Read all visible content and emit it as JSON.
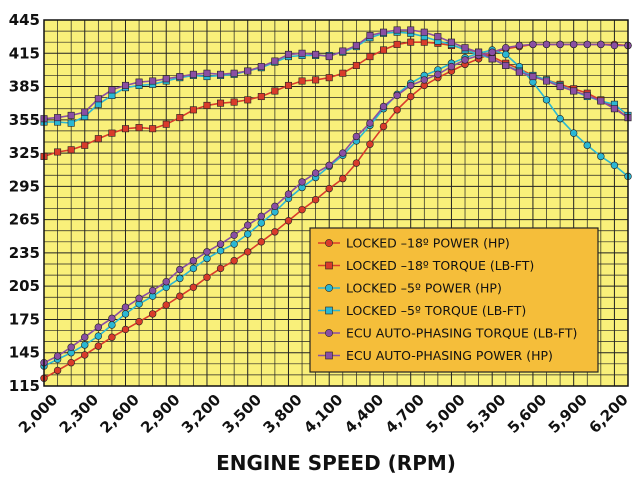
{
  "chart_data": {
    "type": "line",
    "title": "",
    "xlabel": "ENGINE SPEED (RPM)",
    "ylabel": "",
    "xlim": [
      2000,
      6300
    ],
    "ylim": [
      115,
      445
    ],
    "x_ticks": [
      "2,000",
      "2,300",
      "2,600",
      "2,900",
      "3,200",
      "3,500",
      "3,800",
      "4,100",
      "4,400",
      "4,700",
      "5,000",
      "5,300",
      "5,600",
      "5,900",
      "6,200"
    ],
    "y_ticks": [
      "115",
      "145",
      "175",
      "205",
      "235",
      "265",
      "295",
      "325",
      "355",
      "385",
      "415",
      "445"
    ],
    "grid": true,
    "background_color": "#f9f07a",
    "legend_placement": "center-right",
    "legend": [
      {
        "label": "LOCKED –18º POWER (HP)",
        "marker": "circle",
        "color": "#d93b2b"
      },
      {
        "label": "LOCKED –18º TORQUE (LB-FT)",
        "marker": "square",
        "color": "#d93b2b"
      },
      {
        "label": "LOCKED –5º POWER (HP)",
        "marker": "circle",
        "color": "#2ab7d4"
      },
      {
        "label": "LOCKED –5º TORQUE (LB-FT)",
        "marker": "square",
        "color": "#2ab7d4"
      },
      {
        "label": "ECU AUTO-PHASING TORQUE (LB-FT)",
        "marker": "circle",
        "color": "#8a4fa3"
      },
      {
        "label": "ECU AUTO-PHASING POWER (HP)",
        "marker": "square",
        "color": "#8a4fa3"
      }
    ],
    "series": [
      {
        "marker": "circle",
        "color": "#d93b2b",
        "points": [
          [
            2000,
            122
          ],
          [
            2100,
            129
          ],
          [
            2200,
            136
          ],
          [
            2300,
            143
          ],
          [
            2400,
            151
          ],
          [
            2500,
            159
          ],
          [
            2600,
            166
          ],
          [
            2700,
            173
          ],
          [
            2800,
            180
          ],
          [
            2900,
            188
          ],
          [
            3000,
            196
          ],
          [
            3100,
            204
          ],
          [
            3200,
            213
          ],
          [
            3300,
            221
          ],
          [
            3400,
            228
          ],
          [
            3500,
            236
          ],
          [
            3600,
            245
          ],
          [
            3700,
            254
          ],
          [
            3800,
            264
          ],
          [
            3900,
            274
          ],
          [
            4000,
            283
          ],
          [
            4100,
            293
          ],
          [
            4200,
            302
          ],
          [
            4300,
            316
          ],
          [
            4400,
            333
          ],
          [
            4500,
            349
          ],
          [
            4600,
            364
          ],
          [
            4700,
            376
          ],
          [
            4800,
            386
          ],
          [
            4900,
            393
          ],
          [
            5000,
            399
          ],
          [
            5100,
            405
          ],
          [
            5200,
            410
          ],
          [
            5300,
            415
          ],
          [
            5400,
            419
          ],
          [
            5500,
            421
          ],
          [
            5600,
            423
          ],
          [
            5700,
            423
          ],
          [
            5800,
            423
          ],
          [
            5900,
            423
          ],
          [
            6000,
            423
          ],
          [
            6100,
            423
          ],
          [
            6200,
            423
          ],
          [
            6300,
            422
          ]
        ]
      },
      {
        "marker": "square",
        "color": "#d93b2b",
        "points": [
          [
            2000,
            322
          ],
          [
            2100,
            326
          ],
          [
            2200,
            328
          ],
          [
            2300,
            332
          ],
          [
            2400,
            338
          ],
          [
            2500,
            343
          ],
          [
            2600,
            347
          ],
          [
            2700,
            348
          ],
          [
            2800,
            347
          ],
          [
            2900,
            351
          ],
          [
            3000,
            357
          ],
          [
            3100,
            364
          ],
          [
            3200,
            368
          ],
          [
            3300,
            370
          ],
          [
            3400,
            371
          ],
          [
            3500,
            373
          ],
          [
            3600,
            376
          ],
          [
            3700,
            381
          ],
          [
            3800,
            386
          ],
          [
            3900,
            390
          ],
          [
            4000,
            391
          ],
          [
            4100,
            393
          ],
          [
            4200,
            397
          ],
          [
            4300,
            404
          ],
          [
            4400,
            412
          ],
          [
            4500,
            418
          ],
          [
            4600,
            423
          ],
          [
            4700,
            425
          ],
          [
            4800,
            425
          ],
          [
            4900,
            424
          ],
          [
            5000,
            422
          ],
          [
            5100,
            419
          ],
          [
            5200,
            416
          ],
          [
            5300,
            412
          ],
          [
            5400,
            406
          ],
          [
            5500,
            401
          ],
          [
            5600,
            395
          ],
          [
            5700,
            391
          ],
          [
            5800,
            387
          ],
          [
            5900,
            383
          ],
          [
            6000,
            379
          ],
          [
            6100,
            373
          ],
          [
            6200,
            366
          ],
          [
            6300,
            357
          ]
        ]
      },
      {
        "marker": "circle",
        "color": "#2ab7d4",
        "points": [
          [
            2000,
            133
          ],
          [
            2100,
            139
          ],
          [
            2200,
            145
          ],
          [
            2300,
            152
          ],
          [
            2400,
            160
          ],
          [
            2500,
            170
          ],
          [
            2600,
            180
          ],
          [
            2700,
            189
          ],
          [
            2800,
            196
          ],
          [
            2900,
            204
          ],
          [
            3000,
            212
          ],
          [
            3100,
            221
          ],
          [
            3200,
            230
          ],
          [
            3300,
            237
          ],
          [
            3400,
            243
          ],
          [
            3500,
            252
          ],
          [
            3600,
            262
          ],
          [
            3700,
            272
          ],
          [
            3800,
            284
          ],
          [
            3900,
            294
          ],
          [
            4000,
            303
          ],
          [
            4100,
            313
          ],
          [
            4200,
            323
          ],
          [
            4300,
            336
          ],
          [
            4400,
            350
          ],
          [
            4500,
            365
          ],
          [
            4600,
            378
          ],
          [
            4700,
            388
          ],
          [
            4800,
            395
          ],
          [
            4900,
            400
          ],
          [
            5000,
            406
          ],
          [
            5100,
            411
          ],
          [
            5200,
            415
          ],
          [
            5300,
            418
          ],
          [
            5400,
            414
          ],
          [
            5500,
            403
          ],
          [
            5600,
            389
          ],
          [
            5700,
            373
          ],
          [
            5800,
            356
          ],
          [
            5900,
            343
          ],
          [
            6000,
            332
          ],
          [
            6100,
            322
          ],
          [
            6200,
            314
          ],
          [
            6300,
            304
          ]
        ]
      },
      {
        "marker": "square",
        "color": "#2ab7d4",
        "points": [
          [
            2000,
            353
          ],
          [
            2100,
            353
          ],
          [
            2200,
            352
          ],
          [
            2300,
            358
          ],
          [
            2400,
            369
          ],
          [
            2500,
            377
          ],
          [
            2600,
            384
          ],
          [
            2700,
            386
          ],
          [
            2800,
            387
          ],
          [
            2900,
            390
          ],
          [
            3000,
            393
          ],
          [
            3100,
            395
          ],
          [
            3200,
            394
          ],
          [
            3300,
            395
          ],
          [
            3400,
            396
          ],
          [
            3500,
            399
          ],
          [
            3600,
            402
          ],
          [
            3700,
            407
          ],
          [
            3800,
            412
          ],
          [
            3900,
            413
          ],
          [
            4000,
            413
          ],
          [
            4100,
            413
          ],
          [
            4200,
            416
          ],
          [
            4300,
            421
          ],
          [
            4400,
            429
          ],
          [
            4500,
            433
          ],
          [
            4600,
            434
          ],
          [
            4700,
            433
          ],
          [
            4800,
            430
          ],
          [
            4900,
            426
          ],
          [
            5000,
            423
          ],
          [
            5100,
            418
          ],
          [
            5200,
            414
          ],
          [
            5300,
            410
          ],
          [
            5400,
            404
          ],
          [
            5500,
            399
          ],
          [
            5600,
            395
          ],
          [
            5700,
            391
          ],
          [
            5800,
            386
          ],
          [
            5900,
            381
          ],
          [
            6000,
            376
          ],
          [
            6100,
            372
          ],
          [
            6200,
            369
          ],
          [
            6300,
            359
          ]
        ]
      },
      {
        "marker": "circle",
        "color": "#8a4fa3",
        "points": [
          [
            2000,
            136
          ],
          [
            2100,
            142
          ],
          [
            2200,
            150
          ],
          [
            2300,
            159
          ],
          [
            2400,
            168
          ],
          [
            2500,
            176
          ],
          [
            2600,
            186
          ],
          [
            2700,
            194
          ],
          [
            2800,
            201
          ],
          [
            2900,
            209
          ],
          [
            3000,
            220
          ],
          [
            3100,
            228
          ],
          [
            3200,
            236
          ],
          [
            3300,
            243
          ],
          [
            3400,
            251
          ],
          [
            3500,
            260
          ],
          [
            3600,
            268
          ],
          [
            3700,
            277
          ],
          [
            3800,
            288
          ],
          [
            3900,
            299
          ],
          [
            4000,
            307
          ],
          [
            4100,
            314
          ],
          [
            4200,
            325
          ],
          [
            4300,
            340
          ],
          [
            4400,
            352
          ],
          [
            4500,
            367
          ],
          [
            4600,
            377
          ],
          [
            4700,
            386
          ],
          [
            4800,
            391
          ],
          [
            4900,
            396
          ],
          [
            5000,
            403
          ],
          [
            5100,
            409
          ],
          [
            5200,
            413
          ],
          [
            5300,
            416
          ],
          [
            5400,
            420
          ],
          [
            5500,
            422
          ],
          [
            5600,
            423
          ],
          [
            5700,
            423
          ],
          [
            5800,
            423
          ],
          [
            5900,
            423
          ],
          [
            6000,
            423
          ],
          [
            6100,
            423
          ],
          [
            6200,
            422
          ],
          [
            6300,
            422
          ]
        ]
      },
      {
        "marker": "square",
        "color": "#8a4fa3",
        "points": [
          [
            2000,
            356
          ],
          [
            2100,
            357
          ],
          [
            2200,
            359
          ],
          [
            2300,
            362
          ],
          [
            2400,
            374
          ],
          [
            2500,
            382
          ],
          [
            2600,
            386
          ],
          [
            2700,
            389
          ],
          [
            2800,
            390
          ],
          [
            2900,
            392
          ],
          [
            3000,
            394
          ],
          [
            3100,
            396
          ],
          [
            3200,
            397
          ],
          [
            3300,
            396
          ],
          [
            3400,
            397
          ],
          [
            3500,
            399
          ],
          [
            3600,
            403
          ],
          [
            3700,
            408
          ],
          [
            3800,
            414
          ],
          [
            3900,
            415
          ],
          [
            4000,
            414
          ],
          [
            4100,
            412
          ],
          [
            4200,
            417
          ],
          [
            4300,
            422
          ],
          [
            4400,
            431
          ],
          [
            4500,
            434
          ],
          [
            4600,
            436
          ],
          [
            4700,
            436
          ],
          [
            4800,
            434
          ],
          [
            4900,
            430
          ],
          [
            5000,
            425
          ],
          [
            5100,
            420
          ],
          [
            5200,
            416
          ],
          [
            5300,
            410
          ],
          [
            5400,
            404
          ],
          [
            5500,
            398
          ],
          [
            5600,
            394
          ],
          [
            5700,
            390
          ],
          [
            5800,
            385
          ],
          [
            5900,
            381
          ],
          [
            6000,
            377
          ],
          [
            6100,
            372
          ],
          [
            6200,
            365
          ],
          [
            6300,
            357
          ]
        ]
      }
    ]
  }
}
